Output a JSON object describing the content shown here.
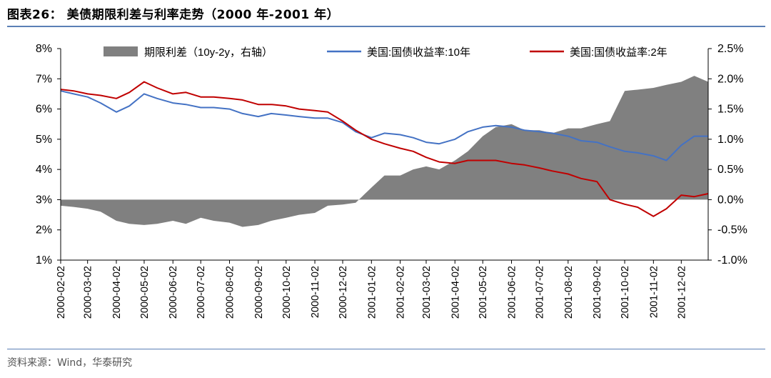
{
  "figure_title": "图表26：  美债期限利差与利率走势（2000 年-2001 年）",
  "source_text": "资料来源：Wind，华泰研究",
  "colors": {
    "spread": "#808080",
    "ten_year": "#4472c4",
    "two_year": "#c00000",
    "rule": "#5b7fb6"
  },
  "chart_data": {
    "type": "line",
    "title": "",
    "xlabel": "",
    "ylabel": "",
    "legend_position": "top",
    "grid": false,
    "ylim_left": [
      1,
      8
    ],
    "ylim_right": [
      -1.0,
      2.5
    ],
    "yticks_left": [
      "1%",
      "2%",
      "3%",
      "4%",
      "5%",
      "6%",
      "7%",
      "8%"
    ],
    "yticks_right": [
      "-1.0%",
      "-0.5%",
      "0.0%",
      "0.5%",
      "1.0%",
      "1.5%",
      "2.0%",
      "2.5%"
    ],
    "x_ticks": [
      "2000-02-02",
      "2000-03-02",
      "2000-04-02",
      "2000-05-02",
      "2000-06-02",
      "2000-07-02",
      "2000-08-02",
      "2000-09-02",
      "2000-10-02",
      "2000-11-02",
      "2000-12-02",
      "2001-01-02",
      "2001-02-02",
      "2001-03-02",
      "2001-04-02",
      "2001-05-02",
      "2001-06-02",
      "2001-07-02",
      "2001-08-02",
      "2001-09-02",
      "2001-10-02",
      "2001-11-02",
      "2001-12-02"
    ],
    "x": [
      "2000-02-02",
      "2000-02-16",
      "2000-03-02",
      "2000-03-16",
      "2000-04-02",
      "2000-04-16",
      "2000-05-02",
      "2000-05-16",
      "2000-06-02",
      "2000-06-16",
      "2000-07-02",
      "2000-07-16",
      "2000-08-02",
      "2000-08-16",
      "2000-09-02",
      "2000-09-16",
      "2000-10-02",
      "2000-10-16",
      "2000-11-02",
      "2000-11-16",
      "2000-12-02",
      "2000-12-16",
      "2001-01-02",
      "2001-01-16",
      "2001-02-02",
      "2001-02-16",
      "2001-03-02",
      "2001-03-16",
      "2001-04-02",
      "2001-04-16",
      "2001-05-02",
      "2001-05-16",
      "2001-06-02",
      "2001-06-16",
      "2001-07-02",
      "2001-07-16",
      "2001-08-02",
      "2001-08-16",
      "2001-09-02",
      "2001-09-16",
      "2001-10-02",
      "2001-10-16",
      "2001-11-02",
      "2001-11-16",
      "2001-12-02",
      "2001-12-16",
      "2001-12-31"
    ],
    "series": [
      {
        "name": "期限利差（10y-2y，右轴）",
        "type": "area",
        "axis": "right",
        "values": [
          -0.1,
          -0.12,
          -0.15,
          -0.2,
          -0.35,
          -0.4,
          -0.42,
          -0.4,
          -0.35,
          -0.4,
          -0.3,
          -0.35,
          -0.38,
          -0.45,
          -0.42,
          -0.35,
          -0.3,
          -0.25,
          -0.22,
          -0.1,
          -0.08,
          -0.05,
          0.2,
          0.4,
          0.4,
          0.5,
          0.55,
          0.5,
          0.65,
          0.8,
          1.05,
          1.2,
          1.25,
          1.15,
          1.15,
          1.1,
          1.18,
          1.18,
          1.25,
          1.3,
          1.8,
          1.82,
          1.85,
          1.9,
          1.95,
          2.05,
          1.95
        ]
      },
      {
        "name": "美国:国债收益率:10年",
        "type": "line",
        "axis": "left",
        "values": [
          6.6,
          6.5,
          6.4,
          6.2,
          5.9,
          6.1,
          6.5,
          6.35,
          6.2,
          6.15,
          6.05,
          6.05,
          6.0,
          5.85,
          5.75,
          5.85,
          5.8,
          5.75,
          5.7,
          5.7,
          5.55,
          5.25,
          5.05,
          5.2,
          5.15,
          5.05,
          4.9,
          4.85,
          5.0,
          5.25,
          5.4,
          5.45,
          5.4,
          5.3,
          5.25,
          5.2,
          5.1,
          4.95,
          4.9,
          4.75,
          4.6,
          4.55,
          4.45,
          4.3,
          4.8,
          5.1,
          5.1
        ]
      },
      {
        "name": "美国:国债收益率:2年",
        "type": "line",
        "axis": "left",
        "values": [
          6.65,
          6.6,
          6.5,
          6.45,
          6.35,
          6.55,
          6.9,
          6.7,
          6.5,
          6.55,
          6.4,
          6.4,
          6.35,
          6.3,
          6.15,
          6.15,
          6.1,
          6.0,
          5.95,
          5.9,
          5.6,
          5.3,
          5.0,
          4.85,
          4.7,
          4.6,
          4.4,
          4.25,
          4.2,
          4.3,
          4.3,
          4.3,
          4.2,
          4.15,
          4.05,
          3.95,
          3.85,
          3.7,
          3.6,
          3.0,
          2.85,
          2.75,
          2.45,
          2.7,
          3.15,
          3.1,
          3.2
        ]
      }
    ]
  }
}
